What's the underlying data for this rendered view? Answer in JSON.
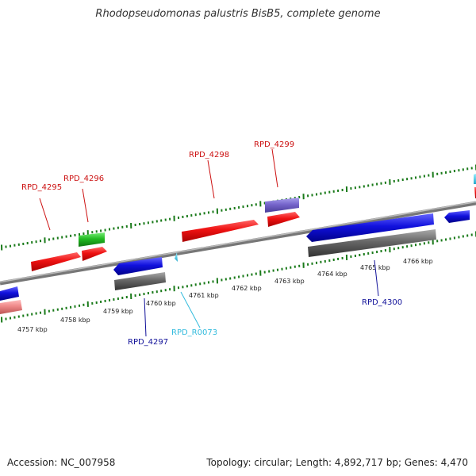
{
  "title": "Rhodopseudomonas palustris BisB5, complete genome",
  "accession": "Accession: NC_007958",
  "summary": "Topology: circular; Length: 4,892,717 bp; Genes: 4,470",
  "colors": {
    "forward_cds": "#ee1111",
    "reverse_cds": "#1111dd",
    "rna": "#33ccee",
    "green_feature": "#22bb22",
    "purple_feature": "#7766cc",
    "pink_feature": "#ee8888",
    "gene_bar": "#666666",
    "backbone": "#888888",
    "ruler": "#1a7a1a",
    "label_red": "#cc1111",
    "label_blue": "#111199",
    "label_cyan": "#33bbdd"
  },
  "tick_labels": [
    "4757 kbp",
    "4758 kbp",
    "4759 kbp",
    "4760 kbp",
    "4761 kbp",
    "4762 kbp",
    "4763 kbp",
    "4764 kbp",
    "4765 kbp",
    "4766 kbp"
  ],
  "gene_labels": {
    "rpd4295": "RPD_4295",
    "rpd4296": "RPD_4296",
    "rpd4297": "RPD_4297",
    "rpd4298": "RPD_4298",
    "rpd4299": "RPD_4299",
    "rpd4300": "RPD_4300",
    "rpdR0073": "RPD_R0073"
  }
}
